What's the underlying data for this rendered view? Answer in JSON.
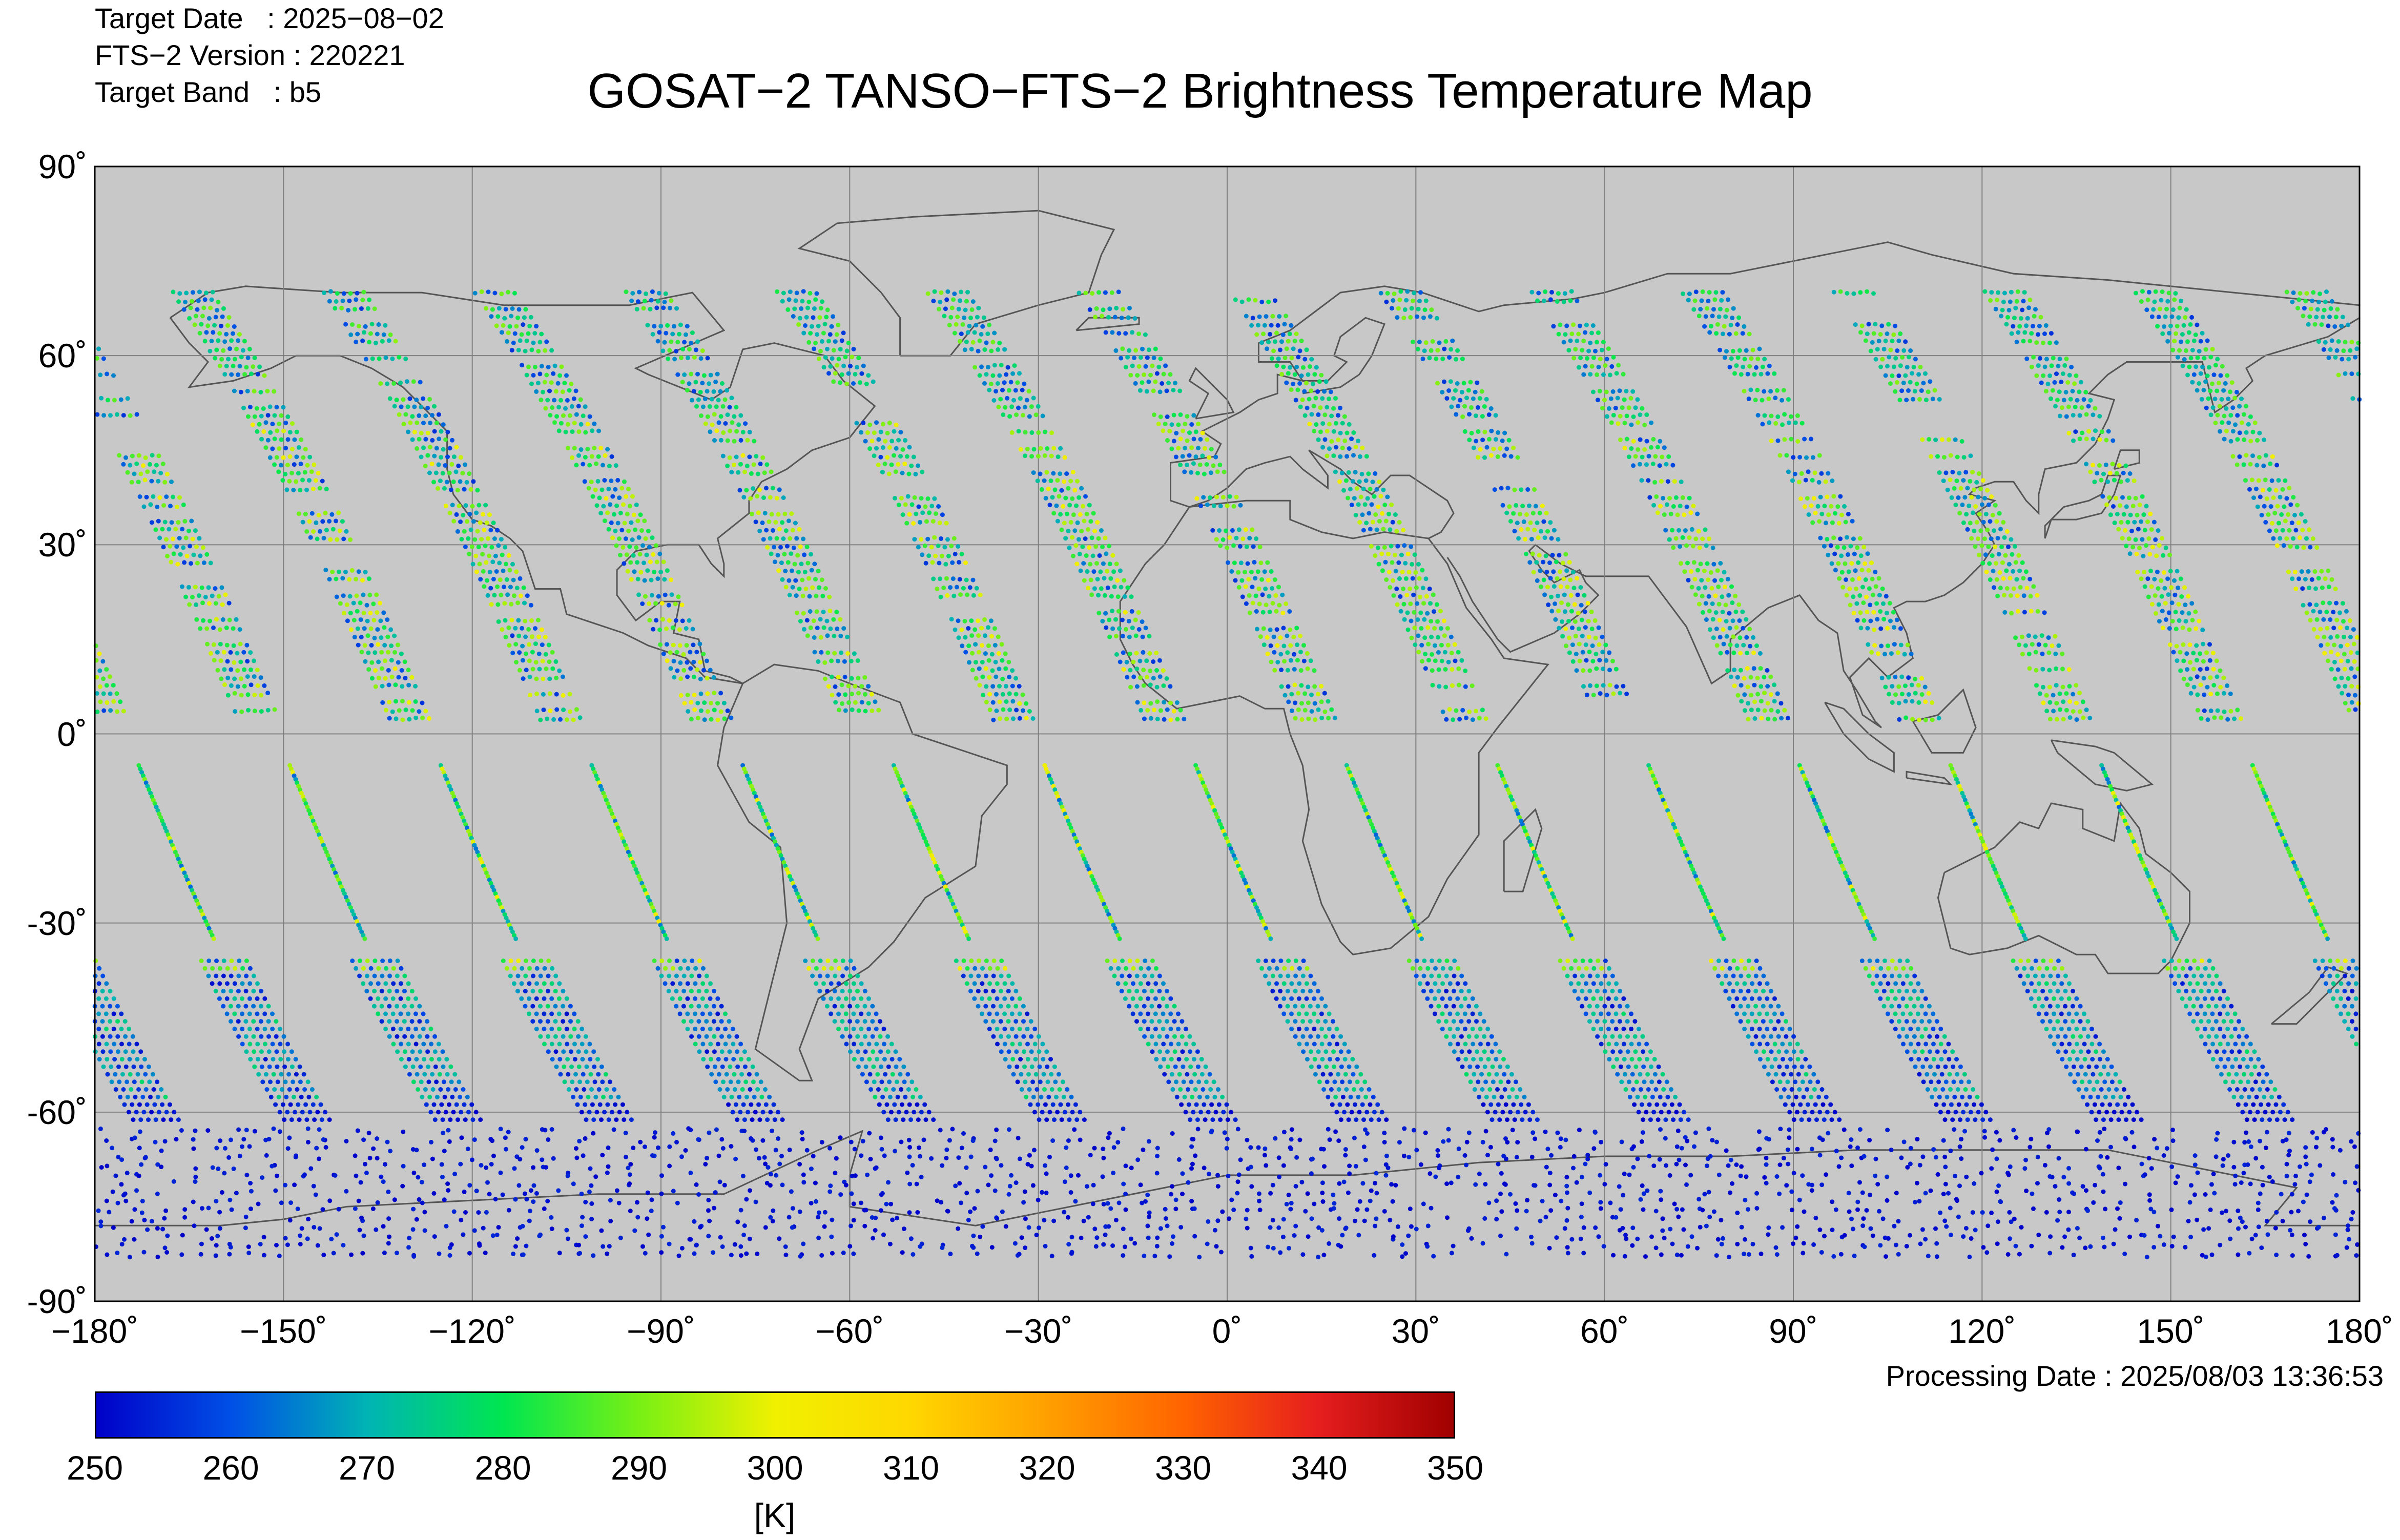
{
  "header": {
    "target_date_label": "Target Date   : 2025−08−02",
    "version_label": "FTS−2 Version : 220221",
    "band_label": "Target Band   : b5",
    "title": "GOSAT−2 TANSO−FTS−2 Brightness Temperature Map"
  },
  "map": {
    "background_color": "#c8c8c8",
    "grid_color": "#808080",
    "coast_color": "#555555",
    "lat_ticks": [
      "90˚",
      "60˚",
      "30˚",
      "0˚",
      "-30˚",
      "-60˚",
      "-90˚"
    ],
    "lon_ticks": [
      "−180˚",
      "−150˚",
      "−120˚",
      "−90˚",
      "−60˚",
      "−30˚",
      "0˚",
      "30˚",
      "60˚",
      "90˚",
      "120˚",
      "150˚",
      "180˚"
    ],
    "lat_range": [
      -90,
      90
    ],
    "lon_range": [
      -180,
      180
    ],
    "orbit_equator_crossings_lon": [
      -177,
      -153,
      -129,
      -105,
      -81,
      -57,
      -33,
      -9,
      15,
      39,
      63,
      87,
      111,
      135,
      159
    ],
    "marker_icon": "observation-point-icon"
  },
  "footer": {
    "processing_date": "Processing Date : 2025/08/03 13:36:53"
  },
  "colorbar": {
    "ticks": [
      "250",
      "260",
      "270",
      "280",
      "290",
      "300",
      "310",
      "320",
      "330",
      "340",
      "350"
    ],
    "range": [
      250,
      350
    ],
    "unit": "[K]",
    "colors": [
      "#0000c8",
      "#0050e6",
      "#00b4b4",
      "#00e650",
      "#78f014",
      "#f0f000",
      "#ffd700",
      "#ffa000",
      "#ff6400",
      "#e61e1e",
      "#a00000"
    ]
  }
}
